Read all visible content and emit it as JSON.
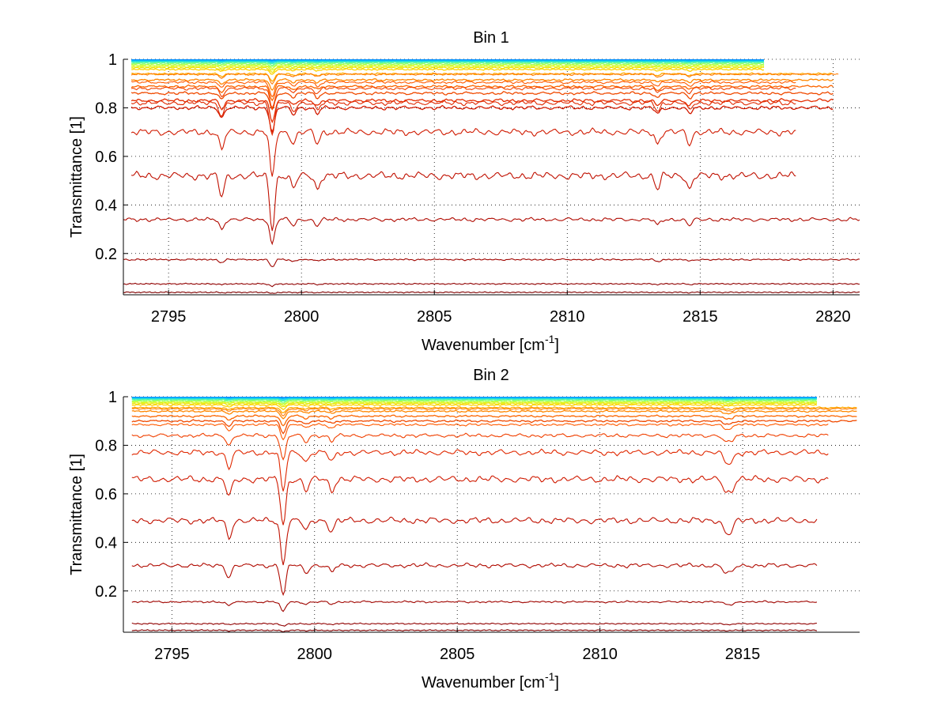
{
  "chart_data": [
    {
      "type": "line",
      "title": "Bin 1",
      "xlabel": "Wavenumber [cm",
      "xlabel_sup": "-1",
      "xlabel_end": "]",
      "ylabel": "Transmittance [1]",
      "xlim": [
        2793.3,
        2821
      ],
      "ylim": [
        0.03,
        1
      ],
      "xticks": [
        2795,
        2800,
        2805,
        2810,
        2815,
        2820
      ],
      "yticks": [
        0.2,
        0.4,
        0.6,
        0.8,
        1
      ],
      "ytick_labels": [
        "0.2",
        "0.4",
        "0.6",
        "0.8",
        "1"
      ],
      "grid": true,
      "colormap": [
        "#00008f",
        "#0050ff",
        "#00c8ff",
        "#60ff9f",
        "#d8ff28",
        "#ffd000",
        "#ff7000",
        "#e02000",
        "#a00000",
        "#800000"
      ],
      "dip_centers": [
        2797,
        2798.9,
        2799.7,
        2800.6,
        2813.4,
        2814.6
      ],
      "series_bundles": [
        {
          "levels": [
            0.998,
            0.996,
            0.993,
            0.99,
            0.987,
            0.984,
            0.98,
            0.975,
            0.97,
            0.965,
            0.958
          ],
          "x_start": 2793.6,
          "x_end": 2817.4,
          "color_range": [
            0.15,
            0.55
          ]
        },
        {
          "levels": [
            0.94,
            0.915,
            0.888,
            0.86,
            0.83,
            0.8
          ],
          "x_start": 2793.6,
          "x_end": 2820,
          "color_range": [
            0.6,
            0.8
          ]
        }
      ],
      "series": [
        {
          "level": 0.938,
          "x_start": 2793.6,
          "x_end": 2820.2,
          "color": "#ff7a00",
          "depth": 0.04
        },
        {
          "level": 0.905,
          "x_start": 2793.6,
          "x_end": 2818.6,
          "color": "#ff5a00",
          "depth": 0.06
        },
        {
          "level": 0.88,
          "x_start": 2793.6,
          "x_end": 2818.6,
          "color": "#f04000",
          "depth": 0.08
        },
        {
          "level": 0.82,
          "x_start": 2793.6,
          "x_end": 2818.6,
          "color": "#e02800",
          "depth": 0.13
        },
        {
          "level": 0.7,
          "x_start": 2793.6,
          "x_end": 2818.6,
          "color": "#d01a00",
          "depth": 0.19
        },
        {
          "level": 0.52,
          "x_start": 2793.6,
          "x_end": 2818.6,
          "color": "#c01000",
          "depth": 0.22
        },
        {
          "level": 0.34,
          "x_start": 2793.3,
          "x_end": 2821,
          "color": "#b00a00",
          "depth": 0.1
        },
        {
          "level": 0.175,
          "x_start": 2793.3,
          "x_end": 2821,
          "color": "#a00500",
          "depth": 0.03
        },
        {
          "level": 0.075,
          "x_start": 2793.3,
          "x_end": 2821,
          "color": "#900000",
          "depth": 0.01
        },
        {
          "level": 0.04,
          "x_start": 2793.3,
          "x_end": 2821,
          "color": "#800000",
          "depth": 0.005
        }
      ]
    },
    {
      "type": "line",
      "title": "Bin 2",
      "xlabel": "Wavenumber [cm",
      "xlabel_sup": "-1",
      "xlabel_end": "]",
      "ylabel": "Transmittance [1]",
      "xlim": [
        2793.3,
        2819.1
      ],
      "ylim": [
        0.03,
        1
      ],
      "xticks": [
        2795,
        2800,
        2805,
        2810,
        2815
      ],
      "yticks": [
        0.2,
        0.4,
        0.6,
        0.8,
        1
      ],
      "ytick_labels": [
        "0.2",
        "0.4",
        "0.6",
        "0.8",
        "1"
      ],
      "grid": true,
      "colormap": [
        "#00008f",
        "#0050ff",
        "#00c8ff",
        "#60ff9f",
        "#d8ff28",
        "#ffd000",
        "#ff7000",
        "#e02000",
        "#a00000",
        "#800000"
      ],
      "dip_centers": [
        2797,
        2798.9,
        2799.7,
        2800.6,
        2814.4,
        2814.6
      ],
      "series_bundles": [
        {
          "levels": [
            0.998,
            0.996,
            0.993,
            0.99,
            0.987,
            0.984,
            0.98,
            0.976,
            0.972,
            0.966
          ],
          "x_start": 2793.6,
          "x_end": 2817.6,
          "color_range": [
            0.15,
            0.55
          ]
        },
        {
          "levels": [
            0.955,
            0.94,
            0.92,
            0.9
          ],
          "x_start": 2793.6,
          "x_end": 2819,
          "color_range": [
            0.6,
            0.72
          ]
        }
      ],
      "series": [
        {
          "level": 0.95,
          "x_start": 2793.6,
          "x_end": 2819,
          "color": "#ff7a00",
          "depth": 0.03
        },
        {
          "level": 0.885,
          "x_start": 2793.6,
          "x_end": 2818,
          "color": "#ff5a00",
          "depth": 0.06
        },
        {
          "level": 0.84,
          "x_start": 2793.6,
          "x_end": 2818,
          "color": "#f04000",
          "depth": 0.1
        },
        {
          "level": 0.77,
          "x_start": 2793.6,
          "x_end": 2818,
          "color": "#e02800",
          "depth": 0.16
        },
        {
          "level": 0.66,
          "x_start": 2793.6,
          "x_end": 2818,
          "color": "#d01a00",
          "depth": 0.19
        },
        {
          "level": 0.49,
          "x_start": 2793.6,
          "x_end": 2817.6,
          "color": "#c01000",
          "depth": 0.18
        },
        {
          "level": 0.305,
          "x_start": 2793.6,
          "x_end": 2817.6,
          "color": "#b00a00",
          "depth": 0.12
        },
        {
          "level": 0.155,
          "x_start": 2793.6,
          "x_end": 2817.6,
          "color": "#a00500",
          "depth": 0.04
        },
        {
          "level": 0.065,
          "x_start": 2793.6,
          "x_end": 2817.6,
          "color": "#900000",
          "depth": 0.01
        },
        {
          "level": 0.038,
          "x_start": 2793.6,
          "x_end": 2817.6,
          "color": "#800000",
          "depth": 0.005
        }
      ]
    }
  ]
}
